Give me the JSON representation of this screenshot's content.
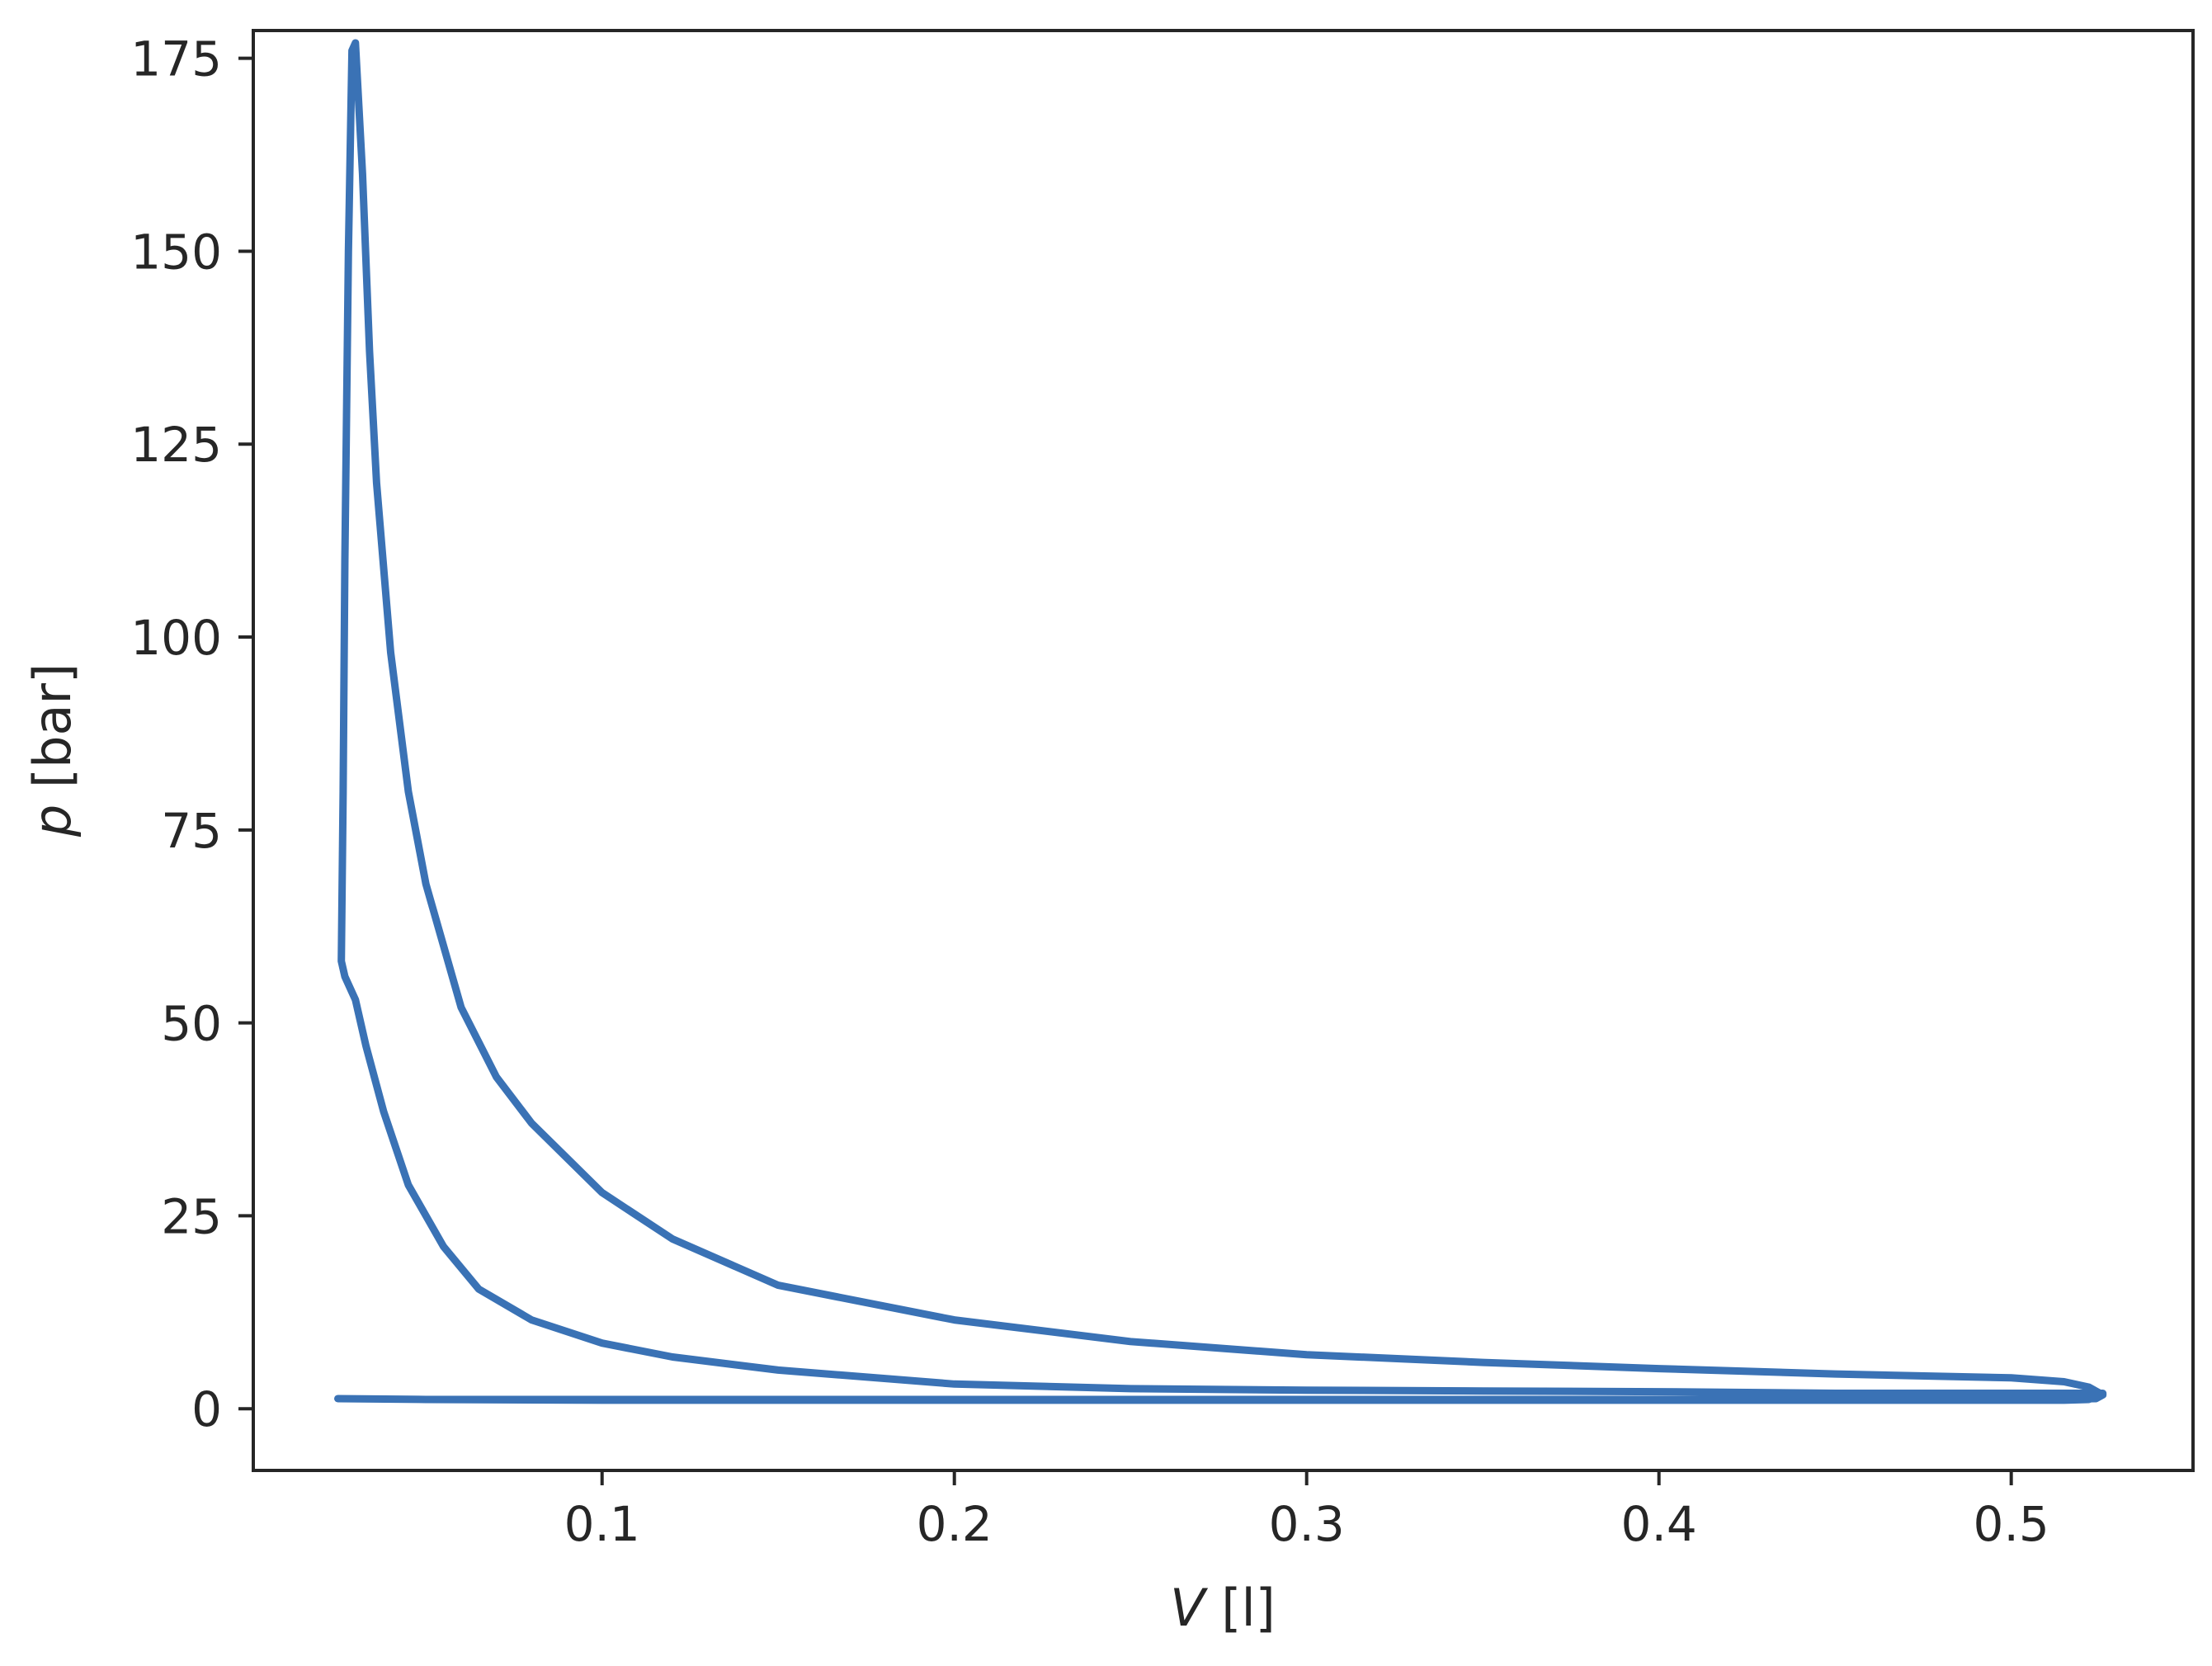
{
  "chart_data": {
    "type": "line",
    "title": "",
    "xlabel": "V [l]",
    "ylabel": "p [bar]",
    "xlabel_parts": {
      "symbol": "V",
      "unit": " [l]"
    },
    "ylabel_parts": {
      "symbol": "p",
      "unit": " [bar]"
    },
    "xlim": [
      0.001,
      0.5516
    ],
    "ylim": [
      -8,
      178.6
    ],
    "xticks": [
      0.1,
      0.2,
      0.3,
      0.4,
      0.5
    ],
    "xtick_labels": [
      "0.1",
      "0.2",
      "0.3",
      "0.4",
      "0.5"
    ],
    "yticks": [
      0,
      25,
      50,
      75,
      100,
      125,
      150,
      175
    ],
    "ytick_labels": [
      "0",
      "25",
      "50",
      "75",
      "100",
      "125",
      "150",
      "175"
    ],
    "grid": false,
    "line_color": "#3a72b5",
    "series": [
      {
        "x": [
          0.025,
          0.05,
          0.1,
          0.15,
          0.2,
          0.25,
          0.3,
          0.35,
          0.4,
          0.45,
          0.5,
          0.515,
          0.522,
          0.524,
          0.526,
          0.526,
          0.45,
          0.4,
          0.35,
          0.3,
          0.25,
          0.2,
          0.15,
          0.12,
          0.1,
          0.08,
          0.065,
          0.055,
          0.045,
          0.038,
          0.033,
          0.03,
          0.027,
          0.026,
          0.0265,
          0.027,
          0.028,
          0.029,
          0.03,
          0.032,
          0.034,
          0.036,
          0.04,
          0.045,
          0.05,
          0.06,
          0.07,
          0.08,
          0.1,
          0.12,
          0.15,
          0.2,
          0.25,
          0.3,
          0.35,
          0.4,
          0.45,
          0.5,
          0.515,
          0.522,
          0.526,
          0.524,
          0.5,
          0.45,
          0.4,
          0.35,
          0.3,
          0.25,
          0.2,
          0.15,
          0.1,
          0.05,
          0.025
        ],
        "y": [
          1.3,
          1.2,
          1.1,
          1.1,
          1.1,
          1.1,
          1.1,
          1.1,
          1.1,
          1.1,
          1.1,
          1.1,
          1.2,
          1.5,
          1.8,
          2.0,
          2.0,
          2.2,
          2.3,
          2.4,
          2.6,
          3.2,
          5.0,
          6.7,
          8.5,
          11.5,
          15.5,
          21.0,
          29.0,
          38.5,
          47.0,
          53.0,
          56.0,
          58.0,
          80.0,
          110.0,
          150.0,
          176.0,
          177.0,
          160.0,
          137.0,
          120.0,
          98.0,
          80.0,
          68.0,
          52.0,
          43.0,
          37.0,
          28.0,
          22.0,
          16.0,
          11.5,
          8.7,
          7.0,
          6.0,
          5.2,
          4.5,
          4.0,
          3.5,
          2.8,
          1.8,
          1.3,
          1.2,
          1.2,
          1.2,
          1.2,
          1.2,
          1.2,
          1.2,
          1.2,
          1.2,
          1.2,
          1.3
        ]
      }
    ]
  }
}
